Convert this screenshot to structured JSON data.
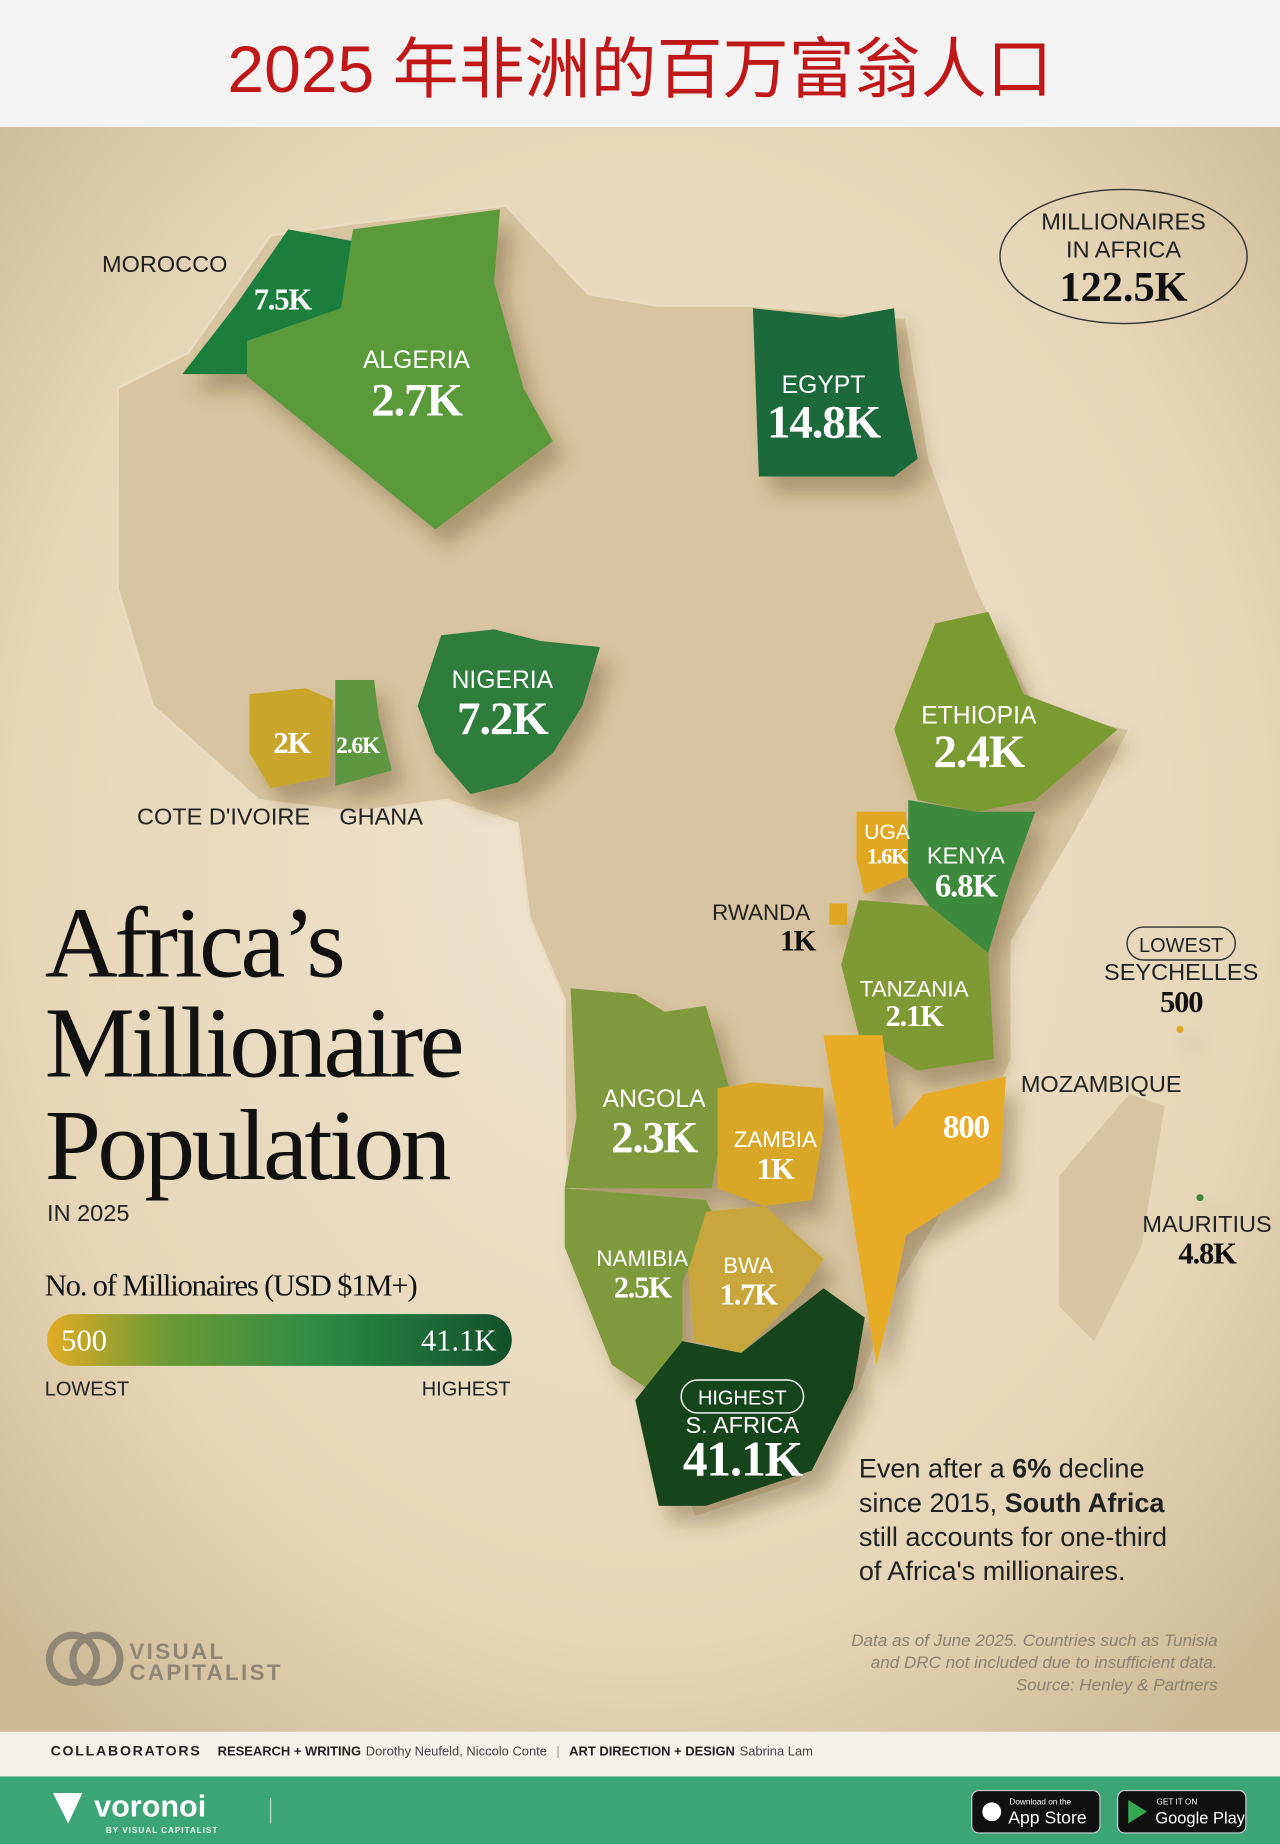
{
  "header": {
    "title": "2025 年非洲的百万富翁人口"
  },
  "total": {
    "label_lines": [
      "MILLIONAIRES",
      "IN AFRICA"
    ],
    "value": "122.5K"
  },
  "title": {
    "lines": [
      "Africa’s",
      "Millionaire",
      "Population"
    ],
    "subtitle": "IN 2025"
  },
  "legend": {
    "title": "No. of Millionaires (USD $1M+)",
    "min": "500",
    "max": "41.1K",
    "min_label": "LOWEST",
    "max_label": "HIGHEST"
  },
  "countries": [
    {
      "name": "MOROCCO",
      "value": "7.5K"
    },
    {
      "name": "ALGERIA",
      "value": "2.7K"
    },
    {
      "name": "EGYPT",
      "value": "14.8K"
    },
    {
      "name": "NIGERIA",
      "value": "7.2K"
    },
    {
      "name": "COTE D'IVOIRE",
      "value": "2K"
    },
    {
      "name": "GHANA",
      "value": "2.6K"
    },
    {
      "name": "ETHIOPIA",
      "value": "2.4K"
    },
    {
      "name": "UGA",
      "value": "1.6K"
    },
    {
      "name": "KENYA",
      "value": "6.8K"
    },
    {
      "name": "RWANDA",
      "value": "1K"
    },
    {
      "name": "TANZANIA",
      "value": "2.1K"
    },
    {
      "name": "SEYCHELLES",
      "value": "500",
      "badge": "LOWEST"
    },
    {
      "name": "MOZAMBIQUE",
      "value": "800"
    },
    {
      "name": "ANGOLA",
      "value": "2.3K"
    },
    {
      "name": "ZAMBIA",
      "value": "1K"
    },
    {
      "name": "MAURITIUS",
      "value": "4.8K"
    },
    {
      "name": "NAMIBIA",
      "value": "2.5K"
    },
    {
      "name": "BWA",
      "value": "1.7K"
    },
    {
      "name": "S. AFRICA",
      "value": "41.1K",
      "badge": "HIGHEST"
    }
  ],
  "callout": {
    "lines": [
      [
        {
          "text": "Even after a ",
          "bold": false
        },
        {
          "text": "6%",
          "bold": true
        },
        {
          "text": " decline",
          "bold": false
        }
      ],
      [
        {
          "text": "since 2015, ",
          "bold": false
        },
        {
          "text": "South Africa",
          "bold": true
        }
      ],
      [
        {
          "text": "still accounts for one-third",
          "bold": false
        }
      ],
      [
        {
          "text": "of Africa's millionaires.",
          "bold": false
        }
      ]
    ]
  },
  "note": {
    "lines": [
      "Data as of June 2025. Countries such as Tunisia",
      "and DRC not included due to insufficient data.",
      "Source: Henley & Partners"
    ]
  },
  "logo": {
    "lines": [
      "VISUAL",
      "CAPITALIST"
    ]
  },
  "credits": {
    "heading": "COLLABORATORS",
    "research_label": "RESEARCH + WRITING",
    "research": "Dorothy Neufeld, Niccolo Conte",
    "design_label": "ART DIRECTION + DESIGN",
    "design": "Sabrina Lam"
  },
  "footer": {
    "brand": "voronoi",
    "brand_sub": "BY VISUAL CAPITALIST",
    "app_store_small": "Download on the",
    "app_store": "App Store",
    "google_small": "GET IT ON",
    "google": "Google Play"
  }
}
